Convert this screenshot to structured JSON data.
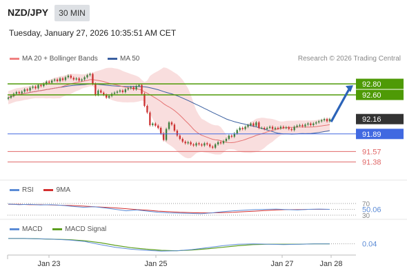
{
  "header": {
    "symbol": "NZD/JPY",
    "timeframe": "30 MIN",
    "datetime": "Tuesday, January 27, 2026 10:35:51 AM CET"
  },
  "legend": {
    "ma20_bb": "MA 20 + Bollinger Bands",
    "ma50": "MA 50",
    "rsi": "RSI",
    "rsi_ma": "9MA",
    "macd": "MACD",
    "macd_signal": "MACD Signal"
  },
  "credit": "Research © 2026 Trading Central",
  "colors": {
    "resistance_line": "#4e9a06",
    "pivot_line": "#4169e1",
    "support_line": "#e06666",
    "ma20": "#e57373",
    "ma50": "#3a5fa0",
    "bollinger_fill": "#f8d8d8",
    "candle_up": "#3f7f3f",
    "candle_down": "#cc3333",
    "arrow": "#2b63b8",
    "current_price_box": "#333333",
    "macd_line": "#5b8bd6",
    "macd_signal_line": "#5c9e1e",
    "rsi_line": "#5b8bd6",
    "rsi_ma_line": "#d32f2f"
  },
  "chart_data": [
    {
      "type": "candlestick",
      "name": "price",
      "ylim": [
        91.2,
        93.1
      ],
      "x_ticks": [
        "Jan 23",
        "Jan 25",
        "Jan 27",
        "Jan 28"
      ],
      "levels": [
        {
          "label": "92.80",
          "value": 92.8,
          "kind": "resistance"
        },
        {
          "label": "92.60",
          "value": 92.6,
          "kind": "resistance"
        },
        {
          "label": "92.16",
          "value": 92.16,
          "kind": "current"
        },
        {
          "label": "91.89",
          "value": 91.89,
          "kind": "pivot"
        },
        {
          "label": "91.57",
          "value": 91.57,
          "kind": "support"
        },
        {
          "label": "91.38",
          "value": 91.38,
          "kind": "support"
        }
      ],
      "close": [
        92.55,
        92.58,
        92.62,
        92.65,
        92.63,
        92.66,
        92.7,
        92.68,
        92.73,
        92.75,
        92.72,
        92.78,
        92.76,
        92.8,
        92.84,
        92.82,
        92.86,
        92.88,
        92.85,
        92.9,
        92.87,
        92.92,
        92.95,
        92.91,
        92.88,
        92.9,
        92.86,
        92.88,
        92.92,
        92.96,
        92.98,
        92.8,
        92.6,
        92.68,
        92.64,
        92.6,
        92.55,
        92.58,
        92.62,
        92.64,
        92.66,
        92.68,
        92.65,
        92.7,
        92.72,
        92.74,
        92.7,
        92.76,
        92.78,
        92.62,
        92.4,
        92.28,
        92.05,
        92.08,
        92.04,
        92.0,
        91.9,
        91.78,
        91.98,
        92.1,
        92.06,
        91.95,
        91.86,
        91.8,
        91.75,
        91.72,
        91.74,
        91.7,
        91.68,
        91.72,
        91.7,
        91.68,
        91.72,
        91.7,
        91.66,
        91.64,
        91.7,
        91.74,
        91.72,
        91.76,
        91.8,
        91.86,
        91.84,
        91.9,
        91.96,
        92.0,
        91.98,
        92.02,
        92.05,
        92.08,
        92.04,
        92.1,
        92.0,
        92.0,
        91.98,
        92.0,
        92.02,
        91.98,
        92.0,
        91.99,
        92.02,
        92.0,
        92.01,
        91.98,
        91.96,
        92.02,
        92.04,
        92.05,
        92.03,
        92.06,
        92.08,
        92.05,
        92.08,
        92.1,
        92.12,
        92.14,
        92.16,
        92.12,
        92.16
      ]
    },
    {
      "type": "line",
      "name": "RSI",
      "levels": [
        70,
        50.06,
        30
      ],
      "last_value": 50.06,
      "series": [
        {
          "name": "RSI",
          "values": [
            68,
            66,
            67,
            65,
            66,
            64,
            60,
            57,
            59,
            55,
            50,
            45,
            48,
            44,
            40,
            38,
            37,
            36,
            35,
            38,
            42,
            45,
            47,
            49,
            50,
            51,
            49,
            48,
            50,
            51,
            50
          ]
        },
        {
          "name": "9MA",
          "values": [
            67,
            67,
            66,
            66,
            65,
            64,
            63,
            61,
            59,
            57,
            55,
            52,
            49,
            47,
            44,
            42,
            40,
            39,
            38,
            38,
            39,
            40,
            42,
            44,
            46,
            48,
            49,
            49,
            50,
            50,
            50
          ]
        }
      ]
    },
    {
      "type": "line",
      "name": "MACD",
      "last_value": 0.04,
      "series": [
        {
          "name": "MACD",
          "values": [
            0.18,
            0.18,
            0.17,
            0.16,
            0.14,
            0.1,
            0.02,
            -0.05,
            -0.1,
            -0.13,
            -0.15,
            -0.14,
            -0.11,
            -0.06,
            -0.01,
            0.03,
            0.04,
            0.03,
            0.02,
            0.03,
            0.04,
            0.04
          ]
        },
        {
          "name": "MACD Signal",
          "values": [
            0.18,
            0.18,
            0.17,
            0.16,
            0.15,
            0.12,
            0.07,
            0.0,
            -0.06,
            -0.1,
            -0.13,
            -0.14,
            -0.12,
            -0.09,
            -0.05,
            -0.01,
            0.02,
            0.03,
            0.03,
            0.03,
            0.04,
            0.04
          ]
        }
      ]
    }
  ]
}
